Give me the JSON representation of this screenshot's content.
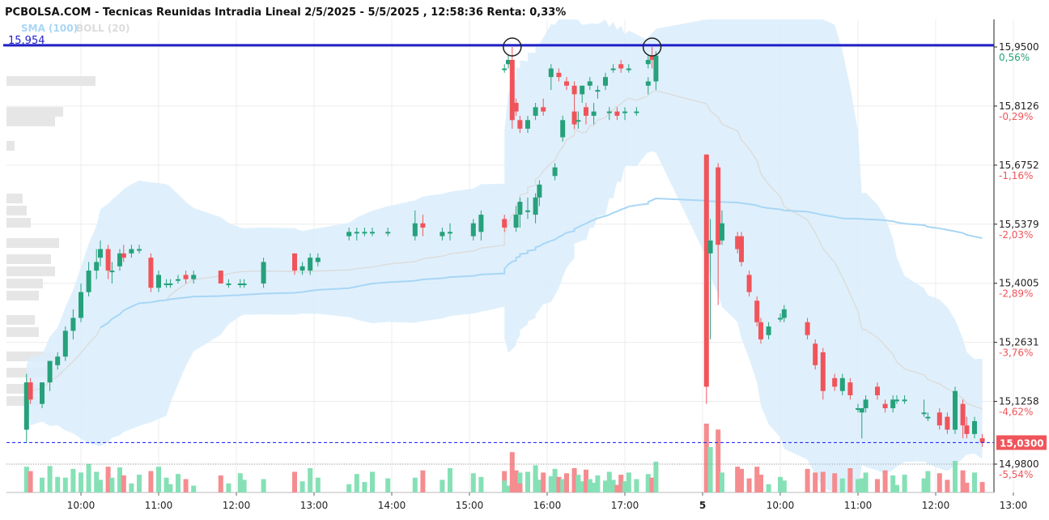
{
  "header": {
    "title": "PCBOLSA.COM - Tecnicas Reunidas Intradia Lineal 2/5/2025 - 5/5/2025 , 12:58:36 Renta: 0,33%",
    "legend_sma": "SMA (100)",
    "legend_boll": "BOLL (20)",
    "resistance_value": "15,954"
  },
  "colors": {
    "up": "#26a17b",
    "down": "#f0545a",
    "band": "#d9edfb",
    "sma": "#a8d6f5",
    "boll_mid": "#dcdcdc",
    "resistance": "#1f1fc8",
    "current_line": "#2d2dff",
    "price_tag": "#f0545a",
    "vol_up": "#86e0b6",
    "vol_down": "#f58c8f",
    "volume_profile": "#e6e6e6"
  },
  "axes": {
    "price_labels": [
      {
        "price": 15.95,
        "label": "15,9500",
        "pct": "0,56%",
        "pct_color": "#26a17b"
      },
      {
        "price": 15.8126,
        "label": "15,8126",
        "pct": "-0,29%",
        "pct_color": "#f0545a"
      },
      {
        "price": 15.6752,
        "label": "15,6752",
        "pct": "-1,16%",
        "pct_color": "#f0545a"
      },
      {
        "price": 15.5379,
        "label": "15,5379",
        "pct": "-2,03%",
        "pct_color": "#f0545a"
      },
      {
        "price": 15.4005,
        "label": "15,4005",
        "pct": "-2,89%",
        "pct_color": "#f0545a"
      },
      {
        "price": 15.2631,
        "label": "15,2631",
        "pct": "-3,76%",
        "pct_color": "#f0545a"
      },
      {
        "price": 15.1258,
        "label": "15,1258",
        "pct": "-4,62%",
        "pct_color": "#f0545a"
      },
      {
        "price": 14.98,
        "label": "14,9800",
        "pct": "-5,54%",
        "pct_color": "#f0545a"
      }
    ],
    "current_price": {
      "price": 15.03,
      "label": "15,0300"
    },
    "resistance_price": 15.954,
    "time_labels": [
      {
        "t": 0.7,
        "label": "10:00"
      },
      {
        "t": 1.7,
        "label": "11:00"
      },
      {
        "t": 2.7,
        "label": "12:00"
      },
      {
        "t": 3.7,
        "label": "13:00"
      },
      {
        "t": 4.7,
        "label": "14:00"
      },
      {
        "t": 5.7,
        "label": "15:00"
      },
      {
        "t": 6.7,
        "label": "16:00"
      },
      {
        "t": 7.7,
        "label": "17:00"
      },
      {
        "t": 8.7,
        "label": "5"
      },
      {
        "t": 9.7,
        "label": "10:00"
      },
      {
        "t": 10.7,
        "label": "11:00"
      },
      {
        "t": 11.7,
        "label": "12:00"
      },
      {
        "t": 12.7,
        "label": "13:00"
      }
    ]
  },
  "chart_data": {
    "type": "candlestick",
    "title": "PCBOLSA.COM - Tecnicas Reunidas Intradia Lineal 2/5/2025 - 5/5/2025 , 12:58:36 Renta: 0,33%",
    "ylim": [
      14.965,
      16.0
    ],
    "session_break_t": 8.7,
    "circles": [
      {
        "t": 6.25,
        "price": 15.95
      },
      {
        "t": 8.05,
        "price": 15.95
      }
    ],
    "candles": [
      {
        "t": 0.0,
        "o": 15.06,
        "h": 15.19,
        "l": 15.03,
        "c": 15.17
      },
      {
        "t": 0.05,
        "o": 15.17,
        "h": 15.18,
        "l": 15.12,
        "c": 15.13
      },
      {
        "t": 0.2,
        "o": 15.12,
        "h": 15.17,
        "l": 15.11,
        "c": 15.17
      },
      {
        "t": 0.3,
        "o": 15.17,
        "h": 15.22,
        "l": 15.15,
        "c": 15.22
      },
      {
        "t": 0.4,
        "o": 15.21,
        "h": 15.24,
        "l": 15.2,
        "c": 15.23
      },
      {
        "t": 0.5,
        "o": 15.23,
        "h": 15.3,
        "l": 15.22,
        "c": 15.29
      },
      {
        "t": 0.6,
        "o": 15.29,
        "h": 15.34,
        "l": 15.27,
        "c": 15.32
      },
      {
        "t": 0.7,
        "o": 15.32,
        "h": 15.4,
        "l": 15.31,
        "c": 15.38
      },
      {
        "t": 0.8,
        "o": 15.38,
        "h": 15.45,
        "l": 15.37,
        "c": 15.43
      },
      {
        "t": 0.9,
        "o": 15.43,
        "h": 15.48,
        "l": 15.41,
        "c": 15.45
      },
      {
        "t": 0.95,
        "o": 15.46,
        "h": 15.5,
        "l": 15.44,
        "c": 15.48
      },
      {
        "t": 1.05,
        "o": 15.48,
        "h": 15.49,
        "l": 15.41,
        "c": 15.43
      },
      {
        "t": 1.1,
        "o": 15.43,
        "h": 15.45,
        "l": 15.4,
        "c": 15.43
      },
      {
        "t": 1.2,
        "o": 15.44,
        "h": 15.48,
        "l": 15.43,
        "c": 15.47
      },
      {
        "t": 1.25,
        "o": 15.47,
        "h": 15.49,
        "l": 15.45,
        "c": 15.46
      },
      {
        "t": 1.35,
        "o": 15.47,
        "h": 15.49,
        "l": 15.46,
        "c": 15.48
      },
      {
        "t": 1.45,
        "o": 15.48,
        "h": 15.49,
        "l": 15.47,
        "c": 15.48
      },
      {
        "t": 1.6,
        "o": 15.46,
        "h": 15.47,
        "l": 15.38,
        "c": 15.39
      },
      {
        "t": 1.7,
        "o": 15.39,
        "h": 15.43,
        "l": 15.38,
        "c": 15.42
      },
      {
        "t": 1.8,
        "o": 15.4,
        "h": 15.41,
        "l": 15.39,
        "c": 15.4
      },
      {
        "t": 1.85,
        "o": 15.4,
        "h": 15.41,
        "l": 15.39,
        "c": 15.4
      },
      {
        "t": 1.95,
        "o": 15.41,
        "h": 15.42,
        "l": 15.4,
        "c": 15.41
      },
      {
        "t": 2.05,
        "o": 15.42,
        "h": 15.43,
        "l": 15.4,
        "c": 15.41
      },
      {
        "t": 2.15,
        "o": 15.41,
        "h": 15.43,
        "l": 15.4,
        "c": 15.42
      },
      {
        "t": 2.5,
        "o": 15.43,
        "h": 15.43,
        "l": 15.4,
        "c": 15.4
      },
      {
        "t": 2.6,
        "o": 15.4,
        "h": 15.41,
        "l": 15.39,
        "c": 15.4
      },
      {
        "t": 2.75,
        "o": 15.4,
        "h": 15.41,
        "l": 15.39,
        "c": 15.4
      },
      {
        "t": 2.8,
        "o": 15.4,
        "h": 15.41,
        "l": 15.39,
        "c": 15.4
      },
      {
        "t": 3.05,
        "o": 15.4,
        "h": 15.46,
        "l": 15.39,
        "c": 15.45
      },
      {
        "t": 3.45,
        "o": 15.47,
        "h": 15.47,
        "l": 15.42,
        "c": 15.43
      },
      {
        "t": 3.55,
        "o": 15.43,
        "h": 15.45,
        "l": 15.42,
        "c": 15.44
      },
      {
        "t": 3.65,
        "o": 15.43,
        "h": 15.47,
        "l": 15.42,
        "c": 15.46
      },
      {
        "t": 3.75,
        "o": 15.45,
        "h": 15.47,
        "l": 15.44,
        "c": 15.46
      },
      {
        "t": 4.15,
        "o": 15.51,
        "h": 15.53,
        "l": 15.5,
        "c": 15.52
      },
      {
        "t": 4.25,
        "o": 15.52,
        "h": 15.53,
        "l": 15.5,
        "c": 15.52
      },
      {
        "t": 4.35,
        "o": 15.52,
        "h": 15.53,
        "l": 15.51,
        "c": 15.52
      },
      {
        "t": 4.45,
        "o": 15.52,
        "h": 15.53,
        "l": 15.51,
        "c": 15.52
      },
      {
        "t": 4.65,
        "o": 15.52,
        "h": 15.53,
        "l": 15.51,
        "c": 15.52
      },
      {
        "t": 5.0,
        "o": 15.51,
        "h": 15.57,
        "l": 15.5,
        "c": 15.54
      },
      {
        "t": 5.1,
        "o": 15.54,
        "h": 15.56,
        "l": 15.51,
        "c": 15.53
      },
      {
        "t": 5.35,
        "o": 15.51,
        "h": 15.53,
        "l": 15.5,
        "c": 15.52
      },
      {
        "t": 5.45,
        "o": 15.52,
        "h": 15.54,
        "l": 15.5,
        "c": 15.52
      },
      {
        "t": 5.75,
        "o": 15.51,
        "h": 15.55,
        "l": 15.5,
        "c": 15.54
      },
      {
        "t": 5.85,
        "o": 15.52,
        "h": 15.57,
        "l": 15.5,
        "c": 15.56
      },
      {
        "t": 6.15,
        "o": 15.55,
        "h": 15.56,
        "l": 15.52,
        "c": 15.53
      },
      {
        "t": 6.3,
        "o": 15.53,
        "h": 15.58,
        "l": 15.52,
        "c": 15.56
      },
      {
        "t": 6.35,
        "o": 15.56,
        "h": 15.6,
        "l": 15.53,
        "c": 15.59
      },
      {
        "t": 6.45,
        "o": 15.57,
        "h": 15.6,
        "l": 15.55,
        "c": 15.57
      },
      {
        "t": 6.55,
        "o": 15.56,
        "h": 15.61,
        "l": 15.54,
        "c": 15.6
      },
      {
        "t": 6.6,
        "o": 15.6,
        "h": 15.64,
        "l": 15.58,
        "c": 15.63
      },
      {
        "t": 6.8,
        "o": 15.65,
        "h": 15.68,
        "l": 15.64,
        "c": 15.67
      },
      {
        "t": 6.9,
        "o": 15.74,
        "h": 15.79,
        "l": 15.73,
        "c": 15.78
      },
      {
        "t": 7.05,
        "o": 15.8,
        "h": 15.83,
        "l": 15.76,
        "c": 15.77
      },
      {
        "t": 7.1,
        "o": 15.78,
        "h": 15.8,
        "l": 15.76,
        "c": 15.78
      },
      {
        "t": 7.2,
        "o": 15.81,
        "h": 15.82,
        "l": 15.77,
        "c": 15.79
      },
      {
        "t": 7.3,
        "o": 15.79,
        "h": 15.82,
        "l": 15.77,
        "c": 15.8
      },
      {
        "t": 7.5,
        "o": 15.8,
        "h": 15.81,
        "l": 15.78,
        "c": 15.8
      },
      {
        "t": 7.6,
        "o": 15.8,
        "h": 15.81,
        "l": 15.78,
        "c": 15.79
      },
      {
        "t": 7.7,
        "o": 15.8,
        "h": 15.81,
        "l": 15.78,
        "c": 15.8
      },
      {
        "t": 7.85,
        "o": 15.8,
        "h": 15.81,
        "l": 15.79,
        "c": 15.8
      },
      {
        "t": 8.0,
        "o": 15.86,
        "h": 15.88,
        "l": 15.84,
        "c": 15.87
      },
      {
        "t": 8.1,
        "o": 15.87,
        "h": 15.94,
        "l": 15.85,
        "c": 15.93
      },
      {
        "t": 6.15,
        "o": 15.9,
        "h": 15.91,
        "l": 15.89,
        "c": 15.9
      },
      {
        "t": 6.2,
        "o": 15.91,
        "h": 15.93,
        "l": 15.9,
        "c": 15.92
      },
      {
        "t": 6.25,
        "o": 15.92,
        "h": 15.95,
        "l": 15.76,
        "c": 15.78
      },
      {
        "t": 6.3,
        "o": 15.82,
        "h": 15.83,
        "l": 15.79,
        "c": 15.8
      },
      {
        "t": 6.35,
        "o": 15.78,
        "h": 15.79,
        "l": 15.75,
        "c": 15.76
      },
      {
        "t": 6.45,
        "o": 15.76,
        "h": 15.79,
        "l": 15.75,
        "c": 15.78
      },
      {
        "t": 6.55,
        "o": 15.79,
        "h": 15.82,
        "l": 15.78,
        "c": 15.81
      },
      {
        "t": 6.65,
        "o": 15.81,
        "h": 15.83,
        "l": 15.79,
        "c": 15.8
      },
      {
        "t": 6.75,
        "o": 15.88,
        "h": 15.91,
        "l": 15.85,
        "c": 15.9
      },
      {
        "t": 6.85,
        "o": 15.89,
        "h": 15.9,
        "l": 15.87,
        "c": 15.88
      },
      {
        "t": 6.95,
        "o": 15.87,
        "h": 15.88,
        "l": 15.85,
        "c": 15.86
      },
      {
        "t": 7.05,
        "o": 15.86,
        "h": 15.87,
        "l": 15.83,
        "c": 15.84
      },
      {
        "t": 7.15,
        "o": 15.84,
        "h": 15.86,
        "l": 15.82,
        "c": 15.86
      },
      {
        "t": 7.25,
        "o": 15.86,
        "h": 15.88,
        "l": 15.85,
        "c": 15.87
      },
      {
        "t": 7.35,
        "o": 15.85,
        "h": 15.86,
        "l": 15.83,
        "c": 15.85
      },
      {
        "t": 7.45,
        "o": 15.86,
        "h": 15.89,
        "l": 15.85,
        "c": 15.88
      },
      {
        "t": 7.55,
        "o": 15.9,
        "h": 15.91,
        "l": 15.89,
        "c": 15.9
      },
      {
        "t": 7.65,
        "o": 15.91,
        "h": 15.92,
        "l": 15.89,
        "c": 15.9
      },
      {
        "t": 7.75,
        "o": 15.9,
        "h": 15.91,
        "l": 15.89,
        "c": 15.9
      },
      {
        "t": 8.0,
        "o": 15.91,
        "h": 15.93,
        "l": 15.9,
        "c": 15.92
      },
      {
        "t": 8.05,
        "o": 15.93,
        "h": 15.95,
        "l": 15.9,
        "c": 15.92
      },
      {
        "t": 8.75,
        "o": 15.7,
        "h": 15.7,
        "l": 15.12,
        "c": 15.16
      },
      {
        "t": 8.8,
        "o": 15.47,
        "h": 15.55,
        "l": 15.27,
        "c": 15.5
      },
      {
        "t": 8.9,
        "o": 15.67,
        "h": 15.68,
        "l": 15.35,
        "c": 15.49
      },
      {
        "t": 8.95,
        "o": 15.5,
        "h": 15.57,
        "l": 15.49,
        "c": 15.54
      },
      {
        "t": 9.15,
        "o": 15.51,
        "h": 15.52,
        "l": 15.47,
        "c": 15.48
      },
      {
        "t": 9.2,
        "o": 15.51,
        "h": 15.52,
        "l": 15.44,
        "c": 15.45
      },
      {
        "t": 9.3,
        "o": 15.42,
        "h": 15.43,
        "l": 15.37,
        "c": 15.38
      },
      {
        "t": 9.4,
        "o": 15.36,
        "h": 15.37,
        "l": 15.3,
        "c": 15.31
      },
      {
        "t": 9.45,
        "o": 15.31,
        "h": 15.32,
        "l": 15.26,
        "c": 15.27
      },
      {
        "t": 9.55,
        "o": 15.28,
        "h": 15.31,
        "l": 15.27,
        "c": 15.3
      },
      {
        "t": 9.7,
        "o": 15.32,
        "h": 15.33,
        "l": 15.31,
        "c": 15.32
      },
      {
        "t": 9.75,
        "o": 15.32,
        "h": 15.35,
        "l": 15.31,
        "c": 15.34
      },
      {
        "t": 10.05,
        "o": 15.31,
        "h": 15.32,
        "l": 15.27,
        "c": 15.28
      },
      {
        "t": 10.15,
        "o": 15.26,
        "h": 15.27,
        "l": 15.2,
        "c": 15.21
      },
      {
        "t": 10.25,
        "o": 15.24,
        "h": 15.25,
        "l": 15.13,
        "c": 15.15
      },
      {
        "t": 10.4,
        "o": 15.18,
        "h": 15.19,
        "l": 15.15,
        "c": 15.16
      },
      {
        "t": 10.5,
        "o": 15.15,
        "h": 15.19,
        "l": 15.14,
        "c": 15.18
      },
      {
        "t": 10.6,
        "o": 15.17,
        "h": 15.18,
        "l": 15.13,
        "c": 15.14
      },
      {
        "t": 10.7,
        "o": 15.11,
        "h": 15.12,
        "l": 15.1,
        "c": 15.11
      },
      {
        "t": 10.75,
        "o": 15.1,
        "h": 15.11,
        "l": 15.04,
        "c": 15.11
      },
      {
        "t": 10.8,
        "o": 15.11,
        "h": 15.14,
        "l": 15.1,
        "c": 15.13
      },
      {
        "t": 10.95,
        "o": 15.16,
        "h": 15.17,
        "l": 15.13,
        "c": 15.14
      },
      {
        "t": 11.05,
        "o": 15.12,
        "h": 15.13,
        "l": 15.1,
        "c": 15.11
      },
      {
        "t": 11.15,
        "o": 15.11,
        "h": 15.14,
        "l": 15.1,
        "c": 15.13
      },
      {
        "t": 11.2,
        "o": 15.13,
        "h": 15.14,
        "l": 15.12,
        "c": 15.13
      },
      {
        "t": 11.3,
        "o": 15.13,
        "h": 15.14,
        "l": 15.12,
        "c": 15.13
      },
      {
        "t": 11.55,
        "o": 15.1,
        "h": 15.13,
        "l": 15.09,
        "c": 15.1
      },
      {
        "t": 11.6,
        "o": 15.09,
        "h": 15.1,
        "l": 15.08,
        "c": 15.09
      },
      {
        "t": 11.75,
        "o": 15.1,
        "h": 15.11,
        "l": 15.06,
        "c": 15.07
      },
      {
        "t": 11.85,
        "o": 15.09,
        "h": 15.1,
        "l": 15.05,
        "c": 15.06
      },
      {
        "t": 11.95,
        "o": 15.06,
        "h": 15.16,
        "l": 15.05,
        "c": 15.15
      },
      {
        "t": 12.05,
        "o": 15.12,
        "h": 15.13,
        "l": 15.04,
        "c": 15.07
      },
      {
        "t": 12.1,
        "o": 15.07,
        "h": 15.09,
        "l": 15.04,
        "c": 15.05
      },
      {
        "t": 12.2,
        "o": 15.05,
        "h": 15.09,
        "l": 15.04,
        "c": 15.08
      },
      {
        "t": 12.3,
        "o": 15.04,
        "h": 15.05,
        "l": 15.02,
        "c": 15.03
      }
    ]
  }
}
